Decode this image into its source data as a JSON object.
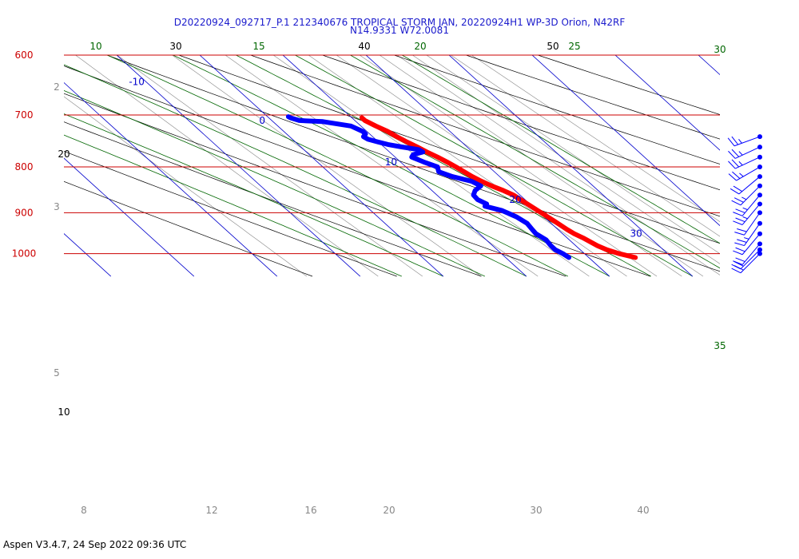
{
  "header": {
    "line1": "D20220924_092717_P.1 212340676 TROPICAL STORM JAN, 20220924H1 WP-3D Orion, N42RF",
    "line2": "N14.9331 W72.0081"
  },
  "footer": {
    "software": "Aspen V3.4.7, 24 Sep 2022  09:36 UTC"
  },
  "colors": {
    "isobar": "#cc0000",
    "isotherm": "#0000cc",
    "dry_adiabat": "#000000",
    "moist_adiabat": "#006600",
    "mixing_ratio": "#888888",
    "temperature": "#ff0000",
    "dewpoint": "#0000ff",
    "wind_barb": "#0000ff"
  },
  "chart_data": {
    "type": "line",
    "diagram": "skew-T log-p",
    "y_axis": {
      "pressure_range_hPa": [
        1050,
        600
      ],
      "scale": "log",
      "isobars": [
        600,
        700,
        800,
        900,
        1000
      ]
    },
    "isotherm_labels": [
      -10,
      0,
      10,
      20,
      30
    ],
    "dry_adiabat_labels": [
      10,
      20,
      30,
      40,
      50
    ],
    "moist_adiabat_labels": [
      10,
      15,
      20,
      25,
      30,
      35
    ],
    "mixing_ratio_labels": [
      2,
      3,
      5,
      8,
      12,
      16,
      20,
      30,
      40
    ],
    "series": [
      {
        "name": "Temperature",
        "pressure": [
          1010,
          1000,
          990,
          980,
          960,
          950,
          940,
          920,
          900,
          880,
          860,
          850,
          840,
          830,
          820,
          800,
          790,
          780,
          770,
          760,
          750,
          740,
          730,
          720,
          710,
          705
        ],
        "values": [
          25.6,
          24.2,
          23.2,
          22.6,
          21.9,
          21.4,
          21.1,
          20.7,
          20.2,
          19.7,
          19.2,
          18.6,
          17.8,
          17.2,
          16.7,
          16.0,
          15.6,
          15.1,
          14.5,
          14.0,
          13.4,
          12.9,
          12.5,
          11.8,
          11.2,
          11.2
        ]
      },
      {
        "name": "Dewpoint",
        "pressure": [
          1010,
          1000,
          990,
          980,
          965,
          950,
          940,
          925,
          910,
          895,
          885,
          880,
          870,
          860,
          855,
          850,
          840,
          830,
          820,
          810,
          800,
          790,
          780,
          775,
          770,
          765,
          760,
          755,
          750,
          745,
          740,
          735,
          730,
          720,
          712,
          710,
          705,
          703
        ],
        "values": [
          17.6,
          17.4,
          17.0,
          17.0,
          17.2,
          16.8,
          16.9,
          17.1,
          16.7,
          15.8,
          14.3,
          14.8,
          14.3,
          14.4,
          14.8,
          15.2,
          16.5,
          16.0,
          14.3,
          13.3,
          13.8,
          12.8,
          12.0,
          12.5,
          14.0,
          13.8,
          12.2,
          10.8,
          9.9,
          9.1,
          8.9,
          9.5,
          9.5,
          8.8,
          6.0,
          3.3,
          2.6,
          2.5
        ]
      }
    ],
    "wind_profile": {
      "pressure": [
        740,
        760,
        780,
        800,
        820,
        840,
        860,
        880,
        900,
        925,
        950,
        975,
        990,
        1000
      ],
      "speed_kt": [
        25,
        25,
        25,
        25,
        20,
        25,
        25,
        25,
        20,
        25,
        20,
        20,
        20,
        20
      ],
      "direction_deg": [
        250,
        245,
        245,
        240,
        230,
        225,
        220,
        220,
        215,
        215,
        220,
        220,
        225,
        225
      ]
    }
  }
}
